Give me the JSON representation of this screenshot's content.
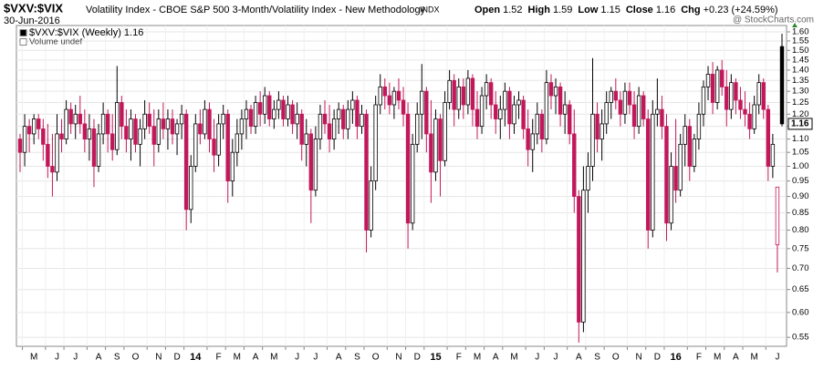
{
  "header": {
    "symbol": "$VXV:$VIX",
    "description": "Volatility Index - CBOE S&P 500 3-Month/Volatility Index - New Methodology",
    "exchange": "INDX",
    "date": "30-Jun-2016",
    "watermark": "@ StockCharts.com",
    "quote": [
      [
        "Open",
        "1.52"
      ],
      [
        "High",
        "1.59"
      ],
      [
        "Low",
        "1.15"
      ],
      [
        "Close",
        "1.16"
      ],
      [
        "Chg",
        "+0.23 (+24.59%)"
      ]
    ]
  },
  "chart_data": {
    "type": "candlestick",
    "legend": [
      "$VXV:$VIX (Weekly) 1.16",
      "Volume undef"
    ],
    "log": true,
    "grid": true,
    "up_color": "#000000",
    "down_color": "#c2185b",
    "ylim": [
      0.533,
      1.636
    ],
    "yticks": [
      0.55,
      {
        "value": 0.6,
        "label": "0.60"
      },
      0.65,
      {
        "value": 0.7,
        "label": "0.70"
      },
      0.75,
      {
        "value": 0.8,
        "label": "0.80"
      },
      0.85,
      {
        "value": 0.9,
        "label": "0.90"
      },
      0.95,
      {
        "value": 1,
        "label": "1.00"
      },
      1.05,
      {
        "value": 1.1,
        "label": "1.10"
      },
      1.15,
      {
        "value": 1.2,
        "label": "1.20"
      },
      1.25,
      {
        "value": 1.3,
        "label": "1.30"
      },
      1.35,
      {
        "value": 1.4,
        "label": "1.40"
      },
      1.45,
      {
        "value": 1.5,
        "label": "1.50"
      },
      1.55,
      {
        "value": 1.6,
        "label": "1.60"
      }
    ],
    "categories": [
      null,
      "M",
      null,
      null,
      null,
      null,
      "J",
      null,
      null,
      null,
      "J",
      null,
      null,
      null,
      null,
      "A",
      null,
      null,
      null,
      "S",
      null,
      null,
      null,
      "O",
      null,
      null,
      null,
      null,
      "N",
      null,
      null,
      null,
      "D",
      null,
      null,
      null,
      "14",
      null,
      null,
      null,
      null,
      "F",
      null,
      null,
      null,
      "M",
      null,
      null,
      null,
      "A",
      null,
      null,
      null,
      "M",
      null,
      null,
      null,
      null,
      "J",
      null,
      null,
      null,
      "J",
      null,
      null,
      null,
      null,
      "A",
      null,
      null,
      null,
      "S",
      null,
      null,
      null,
      "O",
      null,
      null,
      null,
      null,
      "N",
      null,
      null,
      null,
      "D",
      null,
      null,
      null,
      "15",
      null,
      null,
      null,
      null,
      "F",
      null,
      null,
      null,
      "M",
      null,
      null,
      null,
      "A",
      null,
      null,
      null,
      "M",
      null,
      null,
      null,
      null,
      "J",
      null,
      null,
      null,
      "J",
      null,
      null,
      null,
      null,
      "A",
      null,
      null,
      null,
      "S",
      null,
      null,
      null,
      "O",
      null,
      null,
      null,
      null,
      "N",
      null,
      null,
      null,
      "D",
      null,
      null,
      null,
      "16",
      null,
      null,
      null,
      null,
      "F",
      null,
      null,
      null,
      "M",
      null,
      null,
      null,
      "A",
      null,
      null,
      null,
      "M",
      null,
      null,
      null,
      null,
      "J",
      null,
      null,
      null
    ],
    "candles": [
      [
        1.1,
        1.12,
        0.98,
        1.05
      ],
      [
        1.05,
        1.2,
        1.0,
        1.15
      ],
      [
        1.15,
        1.18,
        1.05,
        1.12
      ],
      [
        1.12,
        1.2,
        1.08,
        1.18
      ],
      [
        1.18,
        1.2,
        1.1,
        1.14
      ],
      [
        1.14,
        1.18,
        1.02,
        1.08
      ],
      [
        1.08,
        1.16,
        0.96,
        1.0
      ],
      [
        1.0,
        1.12,
        0.9,
        0.98
      ],
      [
        0.98,
        1.2,
        0.95,
        1.12
      ],
      [
        1.12,
        1.18,
        1.05,
        1.1
      ],
      [
        1.1,
        1.26,
        1.08,
        1.22
      ],
      [
        1.22,
        1.25,
        1.12,
        1.16
      ],
      [
        1.16,
        1.24,
        1.1,
        1.2
      ],
      [
        1.2,
        1.28,
        1.12,
        1.16
      ],
      [
        1.16,
        1.22,
        1.05,
        1.1
      ],
      [
        1.1,
        1.2,
        1.02,
        1.14
      ],
      [
        1.14,
        1.18,
        0.93,
        1.0
      ],
      [
        1.0,
        1.16,
        0.98,
        1.12
      ],
      [
        1.12,
        1.25,
        1.08,
        1.2
      ],
      [
        1.2,
        1.22,
        1.05,
        1.12
      ],
      [
        1.12,
        1.2,
        1.02,
        1.06
      ],
      [
        1.06,
        1.42,
        1.04,
        1.25
      ],
      [
        1.25,
        1.28,
        1.1,
        1.15
      ],
      [
        1.15,
        1.22,
        1.05,
        1.1
      ],
      [
        1.1,
        1.22,
        1.02,
        1.18
      ],
      [
        1.18,
        1.2,
        1.05,
        1.08
      ],
      [
        1.08,
        1.18,
        1.0,
        1.14
      ],
      [
        1.14,
        1.26,
        1.1,
        1.2
      ],
      [
        1.2,
        1.25,
        1.12,
        1.15
      ],
      [
        1.15,
        1.22,
        1.0,
        1.08
      ],
      [
        1.08,
        1.22,
        1.05,
        1.18
      ],
      [
        1.18,
        1.25,
        1.1,
        1.14
      ],
      [
        1.14,
        1.22,
        1.06,
        1.18
      ],
      [
        1.18,
        1.22,
        1.08,
        1.12
      ],
      [
        1.12,
        1.18,
        1.04,
        1.16
      ],
      [
        1.16,
        1.24,
        1.1,
        1.2
      ],
      [
        1.2,
        1.22,
        0.8,
        0.86
      ],
      [
        0.86,
        1.04,
        0.82,
        1.0
      ],
      [
        1.0,
        1.2,
        0.98,
        1.16
      ],
      [
        1.16,
        1.22,
        1.08,
        1.12
      ],
      [
        1.12,
        1.26,
        1.1,
        1.22
      ],
      [
        1.22,
        1.25,
        1.05,
        1.1
      ],
      [
        1.1,
        1.18,
        0.98,
        1.04
      ],
      [
        1.04,
        1.2,
        1.0,
        1.16
      ],
      [
        1.16,
        1.24,
        1.1,
        1.2
      ],
      [
        1.2,
        1.22,
        0.88,
        0.95
      ],
      [
        0.95,
        1.1,
        0.9,
        1.05
      ],
      [
        1.05,
        1.18,
        1.0,
        1.12
      ],
      [
        1.12,
        1.22,
        1.06,
        1.18
      ],
      [
        1.18,
        1.26,
        1.1,
        1.22
      ],
      [
        1.22,
        1.24,
        1.12,
        1.15
      ],
      [
        1.15,
        1.28,
        1.12,
        1.25
      ],
      [
        1.25,
        1.3,
        1.15,
        1.2
      ],
      [
        1.2,
        1.32,
        1.16,
        1.28
      ],
      [
        1.28,
        1.3,
        1.15,
        1.18
      ],
      [
        1.18,
        1.26,
        1.14,
        1.22
      ],
      [
        1.22,
        1.3,
        1.18,
        1.26
      ],
      [
        1.26,
        1.28,
        1.15,
        1.18
      ],
      [
        1.18,
        1.28,
        1.15,
        1.24
      ],
      [
        1.24,
        1.26,
        1.12,
        1.16
      ],
      [
        1.16,
        1.25,
        1.1,
        1.2
      ],
      [
        1.2,
        1.22,
        1.02,
        1.08
      ],
      [
        1.08,
        1.18,
        1.0,
        1.12
      ],
      [
        1.12,
        1.14,
        0.82,
        0.92
      ],
      [
        0.92,
        1.15,
        0.9,
        1.1
      ],
      [
        1.1,
        1.24,
        1.06,
        1.2
      ],
      [
        1.2,
        1.26,
        1.12,
        1.16
      ],
      [
        1.16,
        1.24,
        1.05,
        1.1
      ],
      [
        1.1,
        1.22,
        1.06,
        1.18
      ],
      [
        1.18,
        1.25,
        1.12,
        1.22
      ],
      [
        1.22,
        1.24,
        1.1,
        1.14
      ],
      [
        1.14,
        1.26,
        1.1,
        1.22
      ],
      [
        1.22,
        1.3,
        1.16,
        1.26
      ],
      [
        1.26,
        1.28,
        1.1,
        1.15
      ],
      [
        1.15,
        1.24,
        1.12,
        1.2
      ],
      [
        1.2,
        1.22,
        0.74,
        0.8
      ],
      [
        0.8,
        1.0,
        0.78,
        0.95
      ],
      [
        0.95,
        1.28,
        0.92,
        1.24
      ],
      [
        1.24,
        1.38,
        1.2,
        1.32
      ],
      [
        1.32,
        1.36,
        1.22,
        1.28
      ],
      [
        1.28,
        1.34,
        1.2,
        1.24
      ],
      [
        1.24,
        1.32,
        1.18,
        1.3
      ],
      [
        1.3,
        1.36,
        1.22,
        1.26
      ],
      [
        1.26,
        1.32,
        1.15,
        1.2
      ],
      [
        1.2,
        1.25,
        0.75,
        0.82
      ],
      [
        0.82,
        1.12,
        0.8,
        1.08
      ],
      [
        1.08,
        1.25,
        1.05,
        1.2
      ],
      [
        1.2,
        1.43,
        1.1,
        1.3
      ],
      [
        1.3,
        1.32,
        1.05,
        1.12
      ],
      [
        1.12,
        1.26,
        0.88,
        0.98
      ],
      [
        0.98,
        1.22,
        0.95,
        1.18
      ],
      [
        1.18,
        1.2,
        0.9,
        1.02
      ],
      [
        1.02,
        1.3,
        1.0,
        1.25
      ],
      [
        1.25,
        1.4,
        1.22,
        1.35
      ],
      [
        1.35,
        1.38,
        1.15,
        1.22
      ],
      [
        1.22,
        1.36,
        1.18,
        1.32
      ],
      [
        1.32,
        1.36,
        1.18,
        1.24
      ],
      [
        1.24,
        1.4,
        1.2,
        1.36
      ],
      [
        1.36,
        1.38,
        1.15,
        1.22
      ],
      [
        1.22,
        1.3,
        1.1,
        1.15
      ],
      [
        1.15,
        1.32,
        1.12,
        1.28
      ],
      [
        1.28,
        1.38,
        1.22,
        1.34
      ],
      [
        1.34,
        1.36,
        1.18,
        1.24
      ],
      [
        1.24,
        1.3,
        1.12,
        1.18
      ],
      [
        1.18,
        1.28,
        1.1,
        1.22
      ],
      [
        1.22,
        1.34,
        1.15,
        1.3
      ],
      [
        1.3,
        1.32,
        1.1,
        1.16
      ],
      [
        1.16,
        1.28,
        1.12,
        1.24
      ],
      [
        1.24,
        1.3,
        1.18,
        1.26
      ],
      [
        1.26,
        1.28,
        1.1,
        1.14
      ],
      [
        1.14,
        1.22,
        1.0,
        1.06
      ],
      [
        1.06,
        1.18,
        0.98,
        1.12
      ],
      [
        1.12,
        1.25,
        1.08,
        1.2
      ],
      [
        1.2,
        1.22,
        1.05,
        1.1
      ],
      [
        1.1,
        1.4,
        1.08,
        1.34
      ],
      [
        1.34,
        1.38,
        1.22,
        1.28
      ],
      [
        1.28,
        1.36,
        1.2,
        1.32
      ],
      [
        1.32,
        1.34,
        1.15,
        1.2
      ],
      [
        1.2,
        1.3,
        1.12,
        1.24
      ],
      [
        1.24,
        1.26,
        1.08,
        1.12
      ],
      [
        1.12,
        1.22,
        0.85,
        0.9
      ],
      [
        0.9,
        0.92,
        0.54,
        0.58
      ],
      [
        0.58,
        1.0,
        0.56,
        0.92
      ],
      [
        0.92,
        1.05,
        0.85,
        1.0
      ],
      [
        1.0,
        1.46,
        0.95,
        1.2
      ],
      [
        1.2,
        1.25,
        1.05,
        1.1
      ],
      [
        1.1,
        1.22,
        1.02,
        1.16
      ],
      [
        1.16,
        1.3,
        1.12,
        1.25
      ],
      [
        1.25,
        1.32,
        1.18,
        1.3
      ],
      [
        1.3,
        1.36,
        1.22,
        1.26
      ],
      [
        1.26,
        1.3,
        1.15,
        1.2
      ],
      [
        1.2,
        1.34,
        1.16,
        1.3
      ],
      [
        1.3,
        1.34,
        1.2,
        1.24
      ],
      [
        1.24,
        1.3,
        1.1,
        1.15
      ],
      [
        1.15,
        1.32,
        1.12,
        1.28
      ],
      [
        1.28,
        1.3,
        1.15,
        1.18
      ],
      [
        1.18,
        1.22,
        0.75,
        0.8
      ],
      [
        0.8,
        1.26,
        0.78,
        1.2
      ],
      [
        1.2,
        1.36,
        1.15,
        1.22
      ],
      [
        1.22,
        1.28,
        1.1,
        1.15
      ],
      [
        1.15,
        1.2,
        0.77,
        0.82
      ],
      [
        0.82,
        1.05,
        0.8,
        1.0
      ],
      [
        1.0,
        1.18,
        0.88,
        0.92
      ],
      [
        0.92,
        1.12,
        0.9,
        1.08
      ],
      [
        1.08,
        1.2,
        1.0,
        1.15
      ],
      [
        1.15,
        1.18,
        0.95,
        1.0
      ],
      [
        1.0,
        1.12,
        0.98,
        1.1
      ],
      [
        1.1,
        1.25,
        1.06,
        1.2
      ],
      [
        1.2,
        1.35,
        1.15,
        1.32
      ],
      [
        1.32,
        1.42,
        1.26,
        1.38
      ],
      [
        1.38,
        1.44,
        1.2,
        1.25
      ],
      [
        1.25,
        1.42,
        1.22,
        1.4
      ],
      [
        1.4,
        1.45,
        1.28,
        1.32
      ],
      [
        1.32,
        1.4,
        1.15,
        1.22
      ],
      [
        1.22,
        1.38,
        1.18,
        1.34
      ],
      [
        1.34,
        1.36,
        1.2,
        1.26
      ],
      [
        1.26,
        1.32,
        1.18,
        1.22
      ],
      [
        1.22,
        1.3,
        1.15,
        1.2
      ],
      [
        1.2,
        1.25,
        1.1,
        1.14
      ],
      [
        1.14,
        1.28,
        1.12,
        1.24
      ],
      [
        1.24,
        1.38,
        1.2,
        1.34
      ],
      [
        1.34,
        1.36,
        1.18,
        1.22
      ],
      [
        1.22,
        1.24,
        0.95,
        1.0
      ],
      [
        1.0,
        1.12,
        0.96,
        1.08
      ],
      [
        0.76,
        0.93,
        0.69,
        0.93
      ],
      [
        1.52,
        1.59,
        1.15,
        1.16
      ]
    ]
  }
}
